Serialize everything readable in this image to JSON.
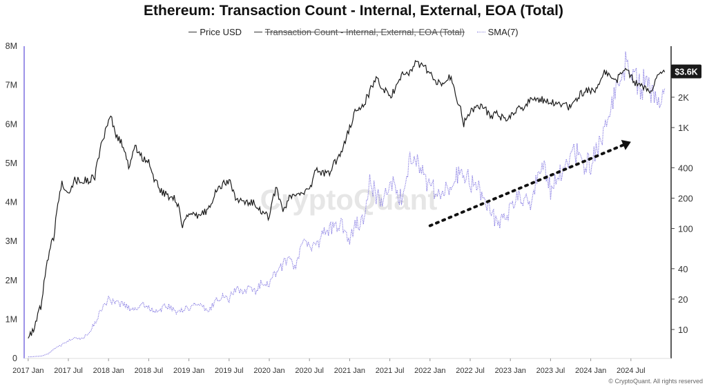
{
  "chart_data": {
    "type": "line",
    "title": "Ethereum: Transaction Count - Internal, External, EOA (Total)",
    "legend": [
      {
        "name": "Price USD",
        "style": "solid",
        "hidden": false
      },
      {
        "name": "Transaction Count - Internal, External, EOA (Total)",
        "style": "solid",
        "hidden": true
      },
      {
        "name": "SMA(7)",
        "style": "dotted",
        "hidden": false
      }
    ],
    "x_ticks": [
      "2017 Jan",
      "2017 Jul",
      "2018 Jan",
      "2018 Jul",
      "2019 Jan",
      "2019 Jul",
      "2020 Jan",
      "2020 Jul",
      "2021 Jan",
      "2021 Jul",
      "2022 Jan",
      "2022 Jul",
      "2023 Jan",
      "2023 Jul",
      "2024 Jan",
      "2024 Jul"
    ],
    "left_axis": {
      "ticks": [
        "0",
        "1M",
        "2M",
        "3M",
        "4M",
        "5M",
        "6M",
        "7M",
        "8M"
      ],
      "values": [
        0,
        1000000,
        2000000,
        3000000,
        4000000,
        5000000,
        6000000,
        7000000,
        8000000
      ],
      "ylim": [
        0,
        8000000
      ]
    },
    "right_axis": {
      "scale": "log",
      "ticks": [
        "$10",
        "$20",
        "$40",
        "$100",
        "$200",
        "$400",
        "$1K",
        "$2K"
      ],
      "labels": [
        "10",
        "20",
        "40",
        "100",
        "200",
        "400",
        "1K",
        "2K"
      ],
      "values": [
        10,
        20,
        40,
        100,
        200,
        400,
        1000,
        2000
      ]
    },
    "current_price_badge": "$3.6K",
    "series": [
      {
        "name": "Price USD",
        "axis": "right",
        "color": "#1a1a1a",
        "x": [
          2017.0,
          2017.08,
          2017.17,
          2017.25,
          2017.33,
          2017.42,
          2017.5,
          2017.58,
          2017.67,
          2017.75,
          2017.83,
          2017.92,
          2018.0,
          2018.04,
          2018.08,
          2018.17,
          2018.25,
          2018.33,
          2018.42,
          2018.5,
          2018.58,
          2018.67,
          2018.75,
          2018.83,
          2018.92,
          2019.0,
          2019.08,
          2019.17,
          2019.25,
          2019.33,
          2019.42,
          2019.5,
          2019.58,
          2019.67,
          2019.75,
          2019.83,
          2019.92,
          2020.0,
          2020.08,
          2020.17,
          2020.25,
          2020.33,
          2020.42,
          2020.5,
          2020.58,
          2020.67,
          2020.75,
          2020.83,
          2020.92,
          2021.0,
          2021.08,
          2021.17,
          2021.25,
          2021.33,
          2021.42,
          2021.5,
          2021.58,
          2021.67,
          2021.75,
          2021.83,
          2021.92,
          2022.0,
          2022.08,
          2022.17,
          2022.25,
          2022.33,
          2022.42,
          2022.5,
          2022.58,
          2022.67,
          2022.75,
          2022.83,
          2022.92,
          2023.0,
          2023.08,
          2023.17,
          2023.25,
          2023.33,
          2023.42,
          2023.5,
          2023.58,
          2023.67,
          2023.75,
          2023.83,
          2023.92,
          2024.0,
          2024.08,
          2024.17,
          2024.25,
          2024.33,
          2024.42,
          2024.5,
          2024.58,
          2024.67,
          2024.75,
          2024.83,
          2024.92
        ],
        "values": [
          8,
          10,
          18,
          50,
          90,
          280,
          230,
          300,
          300,
          300,
          330,
          700,
          1100,
          1250,
          850,
          700,
          400,
          650,
          500,
          460,
          290,
          230,
          210,
          200,
          110,
          140,
          130,
          140,
          160,
          230,
          270,
          300,
          200,
          180,
          180,
          180,
          140,
          130,
          250,
          140,
          200,
          210,
          240,
          230,
          380,
          350,
          360,
          470,
          620,
          1000,
          1500,
          1600,
          2300,
          3000,
          2400,
          2000,
          2500,
          3400,
          3600,
          4500,
          4000,
          3600,
          2700,
          2900,
          3200,
          2000,
          1100,
          1400,
          1700,
          1600,
          1300,
          1400,
          1200,
          1300,
          1550,
          1600,
          1900,
          1850,
          1900,
          1850,
          1650,
          1650,
          1600,
          2000,
          2300,
          2300,
          2500,
          3500,
          3200,
          3000,
          3800,
          3300,
          2600,
          2500,
          2400,
          3100,
          3600
        ]
      },
      {
        "name": "SMA(7)",
        "axis": "left",
        "color": "#7b6fe0",
        "x": [
          2017.0,
          2017.08,
          2017.17,
          2017.25,
          2017.33,
          2017.42,
          2017.5,
          2017.58,
          2017.67,
          2017.75,
          2017.83,
          2017.92,
          2018.0,
          2018.08,
          2018.17,
          2018.25,
          2018.33,
          2018.42,
          2018.5,
          2018.58,
          2018.67,
          2018.75,
          2018.83,
          2018.92,
          2019.0,
          2019.08,
          2019.17,
          2019.25,
          2019.33,
          2019.42,
          2019.5,
          2019.58,
          2019.67,
          2019.75,
          2019.83,
          2019.92,
          2020.0,
          2020.08,
          2020.17,
          2020.25,
          2020.33,
          2020.42,
          2020.5,
          2020.58,
          2020.67,
          2020.75,
          2020.83,
          2020.92,
          2021.0,
          2021.08,
          2021.17,
          2021.25,
          2021.33,
          2021.42,
          2021.5,
          2021.58,
          2021.67,
          2021.75,
          2021.83,
          2021.92,
          2022.0,
          2022.08,
          2022.17,
          2022.25,
          2022.33,
          2022.42,
          2022.5,
          2022.58,
          2022.67,
          2022.75,
          2022.83,
          2022.92,
          2023.0,
          2023.08,
          2023.17,
          2023.25,
          2023.33,
          2023.42,
          2023.5,
          2023.58,
          2023.67,
          2023.75,
          2023.83,
          2023.92,
          2024.0,
          2024.08,
          2024.17,
          2024.25,
          2024.33,
          2024.42,
          2024.5,
          2024.58,
          2024.67,
          2024.75,
          2024.83,
          2024.92
        ],
        "values": [
          40000,
          50000,
          60000,
          120000,
          250000,
          350000,
          450000,
          550000,
          500000,
          650000,
          900000,
          1300000,
          1500000,
          1400000,
          1400000,
          1300000,
          1250000,
          1400000,
          1300000,
          1200000,
          1300000,
          1350000,
          1200000,
          1250000,
          1300000,
          1400000,
          1300000,
          1200000,
          1500000,
          1600000,
          1500000,
          1800000,
          1700000,
          1800000,
          1700000,
          2000000,
          1900000,
          2200000,
          2400000,
          2500000,
          2300000,
          3000000,
          3000000,
          2800000,
          3200000,
          3300000,
          3400000,
          3400000,
          3000000,
          3500000,
          3500000,
          4500000,
          4200000,
          3900000,
          4600000,
          4200000,
          4100000,
          5000000,
          5200000,
          4700000,
          4400000,
          4300000,
          4200000,
          4500000,
          4700000,
          4800000,
          4500000,
          4400000,
          4200000,
          3800000,
          3500000,
          3600000,
          3800000,
          4200000,
          4100000,
          4000000,
          4600000,
          4900000,
          4300000,
          4800000,
          4700000,
          5100000,
          5300000,
          5000000,
          5000000,
          5300000,
          6000000,
          6300000,
          7000000,
          7500000,
          7300000,
          7100000,
          7000000,
          6800000,
          6900000,
          6600000
        ]
      }
    ],
    "annotations": [
      {
        "type": "dotted-arrow",
        "description": "upward trend arrow",
        "from": [
          2022.0,
          3400000
        ],
        "to": [
          2024.5,
          5550000
        ]
      }
    ],
    "watermark": "CryptoQuant"
  },
  "footer": "© CryptoQuant. All rights reserved"
}
